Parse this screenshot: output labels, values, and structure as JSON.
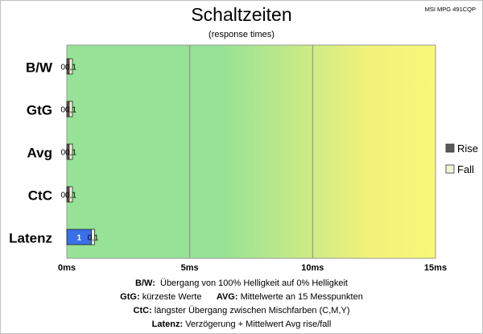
{
  "chart_data": {
    "type": "bar",
    "orientation": "horizontal",
    "stacked": true,
    "title": "Schaltzeiten",
    "subtitle": "(response times)",
    "model": "MSI MPG 491CQP",
    "categories": [
      "B/W",
      "GtG",
      "Avg",
      "CtC",
      "Latenz"
    ],
    "series": [
      {
        "name": "Rise",
        "values": [
          0,
          0,
          0,
          0,
          1
        ],
        "labels": [
          "0",
          "0",
          "0",
          "0",
          "1"
        ],
        "color": "#5b5b5b",
        "latency_color": "#3a6fe8"
      },
      {
        "name": "Fall",
        "values": [
          0.1,
          0.1,
          0.1,
          0.1,
          0.1
        ],
        "labels": [
          "0,1",
          "0,1",
          "0,1",
          "0,1",
          "0,1"
        ],
        "color": "#f3f3d5"
      }
    ],
    "x_ticks": [
      "0ms",
      "5ms",
      "10ms",
      "15ms"
    ],
    "xlim": [
      0,
      15
    ],
    "grid": true,
    "legend": "right",
    "background_gradient": [
      "#96e296",
      "#96e296",
      "#f2f27a",
      "#f7f778"
    ]
  },
  "notes": [
    {
      "key": "B/W:",
      "text": "Übergang von 100% Helligkeit auf 0% Helligkeit"
    },
    {
      "key": "GtG:",
      "text": "kürzeste Werte",
      "key2": "AVG:",
      "text2": "Mittelwerte an 15 Messpunkten"
    },
    {
      "key": "CtC:",
      "text": "längster Übergang zwischen Mischfarben (C,M,Y)"
    },
    {
      "key": "Latenz:",
      "text": "Verzögerung + Mittelwert Avg rise/fall"
    }
  ]
}
